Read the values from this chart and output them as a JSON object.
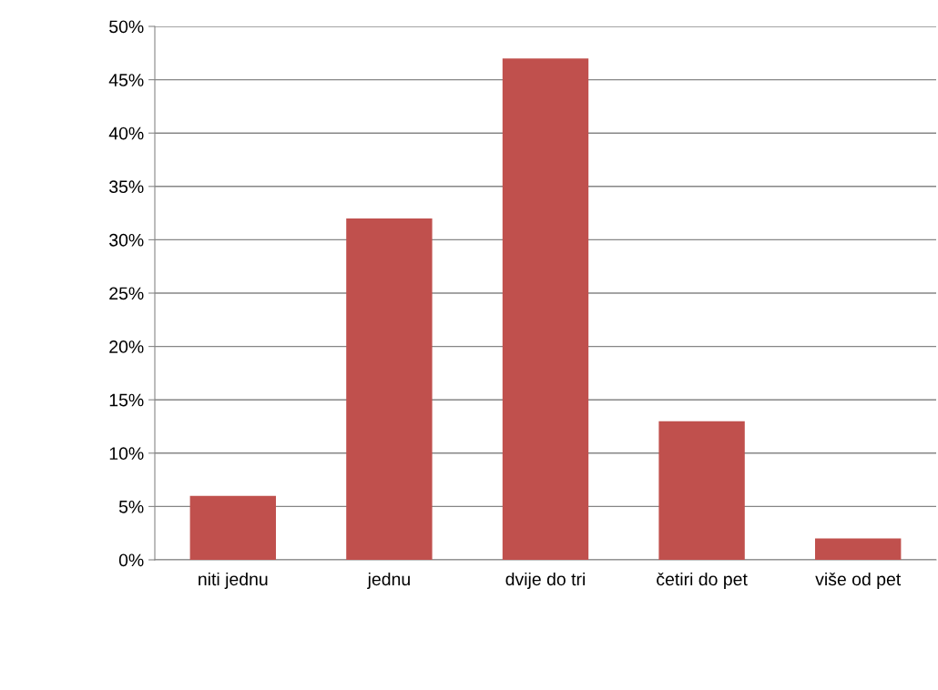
{
  "chart_data": {
    "type": "bar",
    "categories": [
      "niti jednu",
      "jednu",
      "dvije do tri",
      "četiri do pet",
      "više od pet"
    ],
    "values": [
      6,
      32,
      47,
      13,
      2
    ],
    "color": "#c0504d",
    "ylim": [
      0,
      50
    ],
    "yticks": [
      {
        "value": 0,
        "label": "0%"
      },
      {
        "value": 5,
        "label": "5%"
      },
      {
        "value": 10,
        "label": "10%"
      },
      {
        "value": 15,
        "label": "15%"
      },
      {
        "value": 20,
        "label": "20%"
      },
      {
        "value": 25,
        "label": "25%"
      },
      {
        "value": 30,
        "label": "30%"
      },
      {
        "value": 35,
        "label": "35%"
      },
      {
        "value": 40,
        "label": "40%"
      },
      {
        "value": 45,
        "label": "45%"
      },
      {
        "value": 50,
        "label": "50%"
      }
    ],
    "grid": "y",
    "legend": false
  }
}
